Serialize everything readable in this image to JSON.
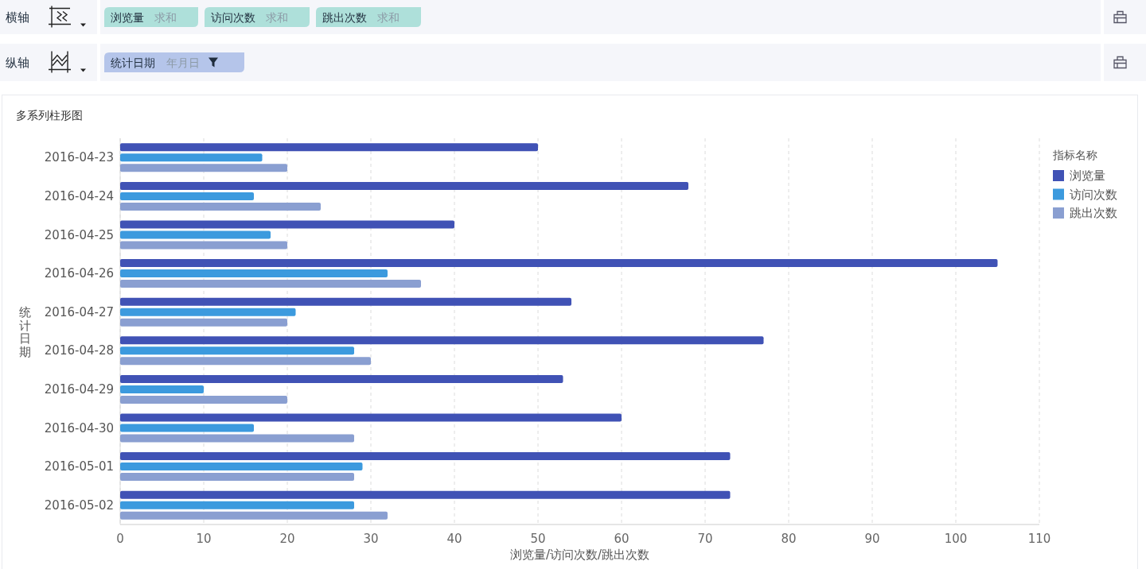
{
  "chart_data": {
    "type": "bar",
    "orientation": "horizontal",
    "title": "多系列柱形图",
    "xlabel": "浏览量/访问次数/跳出次数",
    "ylabel": "统计日期",
    "legend_title": "指标名称",
    "legend": "top right",
    "grid": "x",
    "categories": [
      "2016-04-23",
      "2016-04-24",
      "2016-04-25",
      "2016-04-26",
      "2016-04-27",
      "2016-04-28",
      "2016-04-29",
      "2016-04-30",
      "2016-05-01",
      "2016-05-02"
    ],
    "series": [
      {
        "name": "浏览量",
        "color": "#4052b5",
        "values": [
          50,
          68,
          40,
          105,
          54,
          77,
          53,
          60,
          73,
          73
        ]
      },
      {
        "name": "访问次数",
        "color": "#3c9ade",
        "values": [
          17,
          16,
          18,
          32,
          21,
          28,
          10,
          16,
          29,
          28
        ]
      },
      {
        "name": "跳出次数",
        "color": "#8a9fd1",
        "values": [
          20,
          24,
          20,
          36,
          20,
          30,
          20,
          28,
          28,
          32
        ]
      }
    ],
    "xlim": [
      0,
      110
    ],
    "xticks": [
      0,
      10,
      20,
      30,
      40,
      50,
      60,
      70,
      80,
      90,
      100,
      110
    ],
    "annotations": [
      "横轴",
      "浏览量",
      "求和",
      "访问次数",
      "求和",
      "跳出次数",
      "求和",
      "纵轴",
      "统计日期",
      "年月日"
    ]
  }
}
